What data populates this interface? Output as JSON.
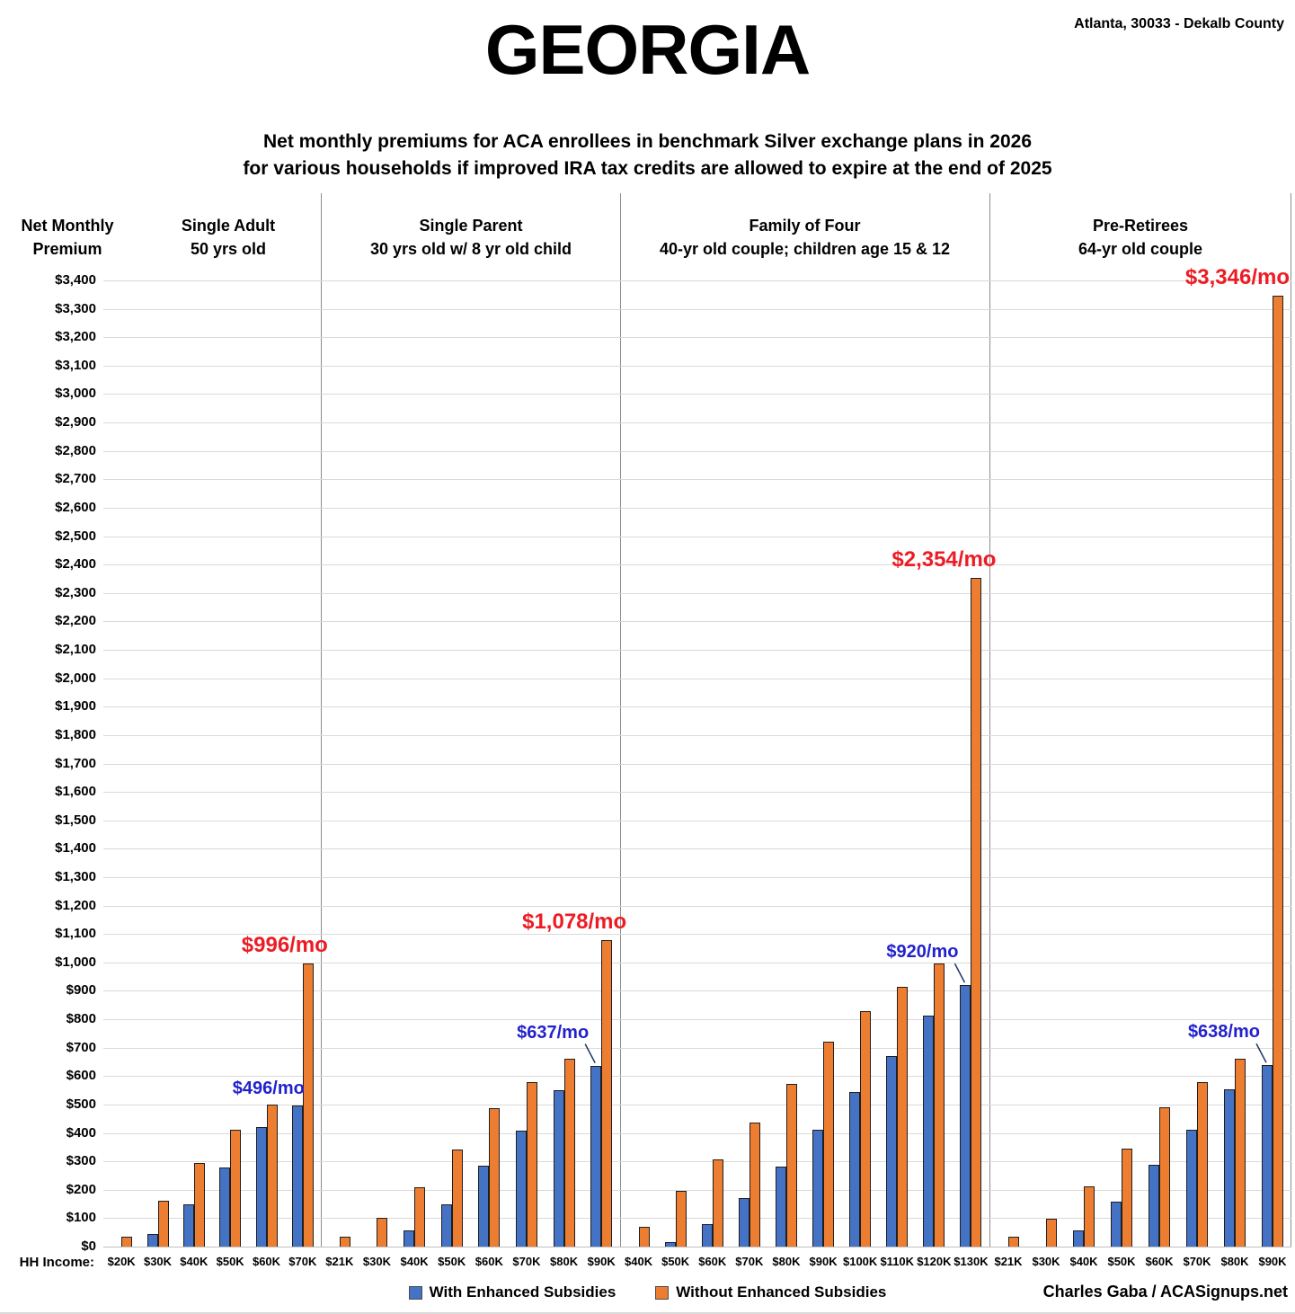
{
  "header": {
    "title": "GEORGIA",
    "location": "Atlanta, 30033 - Dekalb County",
    "subtitle_line1": "Net monthly premiums for ACA enrollees in benchmark Silver exchange plans in 2026",
    "subtitle_line2": "for various households if improved IRA tax credits are allowed to expire at the end of 2025"
  },
  "axis": {
    "y_title_line1": "Net Monthly",
    "y_title_line2": "Premium",
    "x_title": "HH Income:",
    "y_min": 0,
    "y_max": 3400,
    "y_step": 100,
    "y_tick_prefix": "$"
  },
  "legend": [
    {
      "name": "with-enhanced-swatch",
      "label": "With Enhanced Subsidies",
      "color": "#4472C4"
    },
    {
      "name": "without-enhanced-swatch",
      "label": "Without Enhanced Subsidies",
      "color": "#ED7D31"
    }
  ],
  "footer": {
    "credit": "Charles Gaba / ACASignups.net"
  },
  "colors": {
    "bar_with_enhanced": "#4472C4",
    "bar_without_enhanced": "#ED7D31",
    "bar_outline": "#1f1f1f",
    "annotation_red": "#ED1C24",
    "annotation_blue": "#2222CC",
    "arrow": "#1F3864",
    "gridline": "#dadada",
    "panel_divider": "#8c8c8c"
  },
  "chart_data": {
    "type": "bar",
    "title": "GEORGIA — Net monthly premiums for ACA enrollees in benchmark Silver exchange plans in 2026",
    "ylabel": "Net Monthly Premium",
    "xlabel": "HH Income",
    "ylim": [
      0,
      3400
    ],
    "y_step": 100,
    "grid": true,
    "legend_position": "bottom",
    "series_names": [
      "With Enhanced Subsidies",
      "Without Enhanced Subsidies"
    ],
    "panels": [
      {
        "header_line1": "Single Adult",
        "header_line2": "50 yrs old",
        "categories": [
          "$20K",
          "$30K",
          "$40K",
          "$50K",
          "$60K",
          "$70K"
        ],
        "with_enhanced": [
          0,
          45,
          150,
          278,
          420,
          496
        ],
        "without_enhanced": [
          35,
          162,
          295,
          410,
          500,
          996
        ],
        "annotations": [
          {
            "text": "$496/mo",
            "cat": 5,
            "series": "with",
            "color": "blue",
            "arrow": false
          },
          {
            "text": "$996/mo",
            "cat": 5,
            "series": "without",
            "color": "red",
            "arrow": false
          }
        ]
      },
      {
        "header_line1": "Single Parent",
        "header_line2": "30 yrs old w/ 8 yr old child",
        "categories": [
          "$21K",
          "$30K",
          "$40K",
          "$50K",
          "$60K",
          "$70K",
          "$80K",
          "$90K"
        ],
        "with_enhanced": [
          0,
          0,
          57,
          150,
          285,
          408,
          550,
          637
        ],
        "without_enhanced": [
          35,
          100,
          210,
          342,
          487,
          580,
          660,
          1078
        ],
        "annotations": [
          {
            "text": "$637/mo",
            "cat": 7,
            "series": "with",
            "color": "blue",
            "arrow": true
          },
          {
            "text": "$1,078/mo",
            "cat": 7,
            "series": "without",
            "color": "red",
            "arrow": false
          }
        ]
      },
      {
        "header_line1": "Family of Four",
        "header_line2": "40-yr old couple; children age 15 & 12",
        "categories": [
          "$40K",
          "$50K",
          "$60K",
          "$70K",
          "$80K",
          "$90K",
          "$100K",
          "$110K",
          "$120K",
          "$130K"
        ],
        "with_enhanced": [
          0,
          16,
          80,
          172,
          282,
          412,
          545,
          670,
          812,
          920
        ],
        "without_enhanced": [
          70,
          195,
          307,
          435,
          572,
          720,
          830,
          913,
          997,
          2354
        ],
        "annotations": [
          {
            "text": "$920/mo",
            "cat": 9,
            "series": "with",
            "color": "blue",
            "arrow": true
          },
          {
            "text": "$2,354/mo",
            "cat": 9,
            "series": "without",
            "color": "red",
            "arrow": false
          }
        ]
      },
      {
        "header_line1": "Pre-Retirees",
        "header_line2": "64-yr old couple",
        "categories": [
          "$21K",
          "$30K",
          "$40K",
          "$50K",
          "$60K",
          "$70K",
          "$80K",
          "$90K"
        ],
        "with_enhanced": [
          0,
          0,
          58,
          158,
          288,
          412,
          555,
          638
        ],
        "without_enhanced": [
          35,
          98,
          212,
          345,
          490,
          580,
          660,
          3346
        ],
        "annotations": [
          {
            "text": "$638/mo",
            "cat": 7,
            "series": "with",
            "color": "blue",
            "arrow": true
          },
          {
            "text": "$3,346/mo",
            "cat": 7,
            "series": "without",
            "color": "red",
            "arrow": false
          }
        ]
      }
    ]
  }
}
